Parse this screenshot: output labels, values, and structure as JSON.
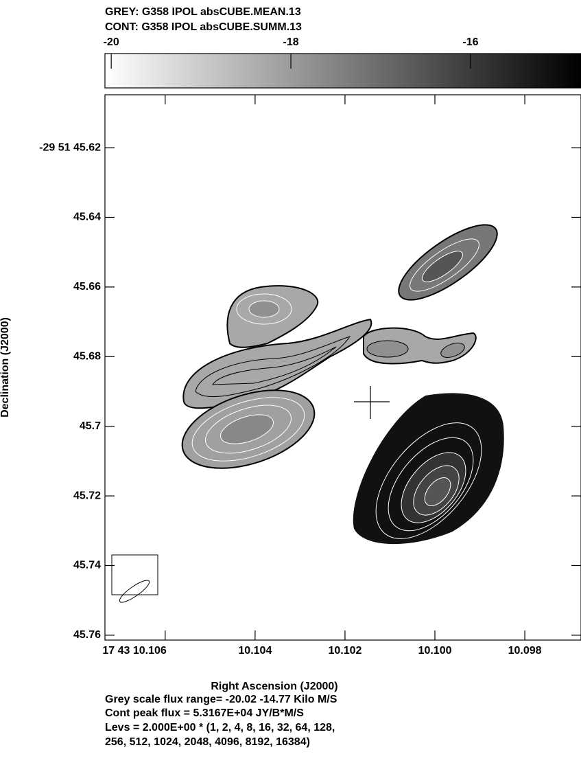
{
  "chart_data": {
    "type": "image",
    "title_lines": [
      "GREY: G358  IPOL  absCUBE.MEAN.13",
      "CONT: G358  IPOL  absCUBE.SUMM.13"
    ],
    "colorbar": {
      "xlim": [
        -20.07,
        -14.77
      ],
      "xticks": [
        -20,
        -18,
        -16
      ],
      "colors": [
        "#ffffff",
        "#000000"
      ]
    },
    "xlim": [
      10.10734,
      10.09675
    ],
    "xticks": [
      {
        "value": 10.106,
        "label": "17 43 10.106"
      },
      10.104,
      10.102,
      {
        "value": 10.1,
        "label": "10.100"
      },
      10.098
    ],
    "ylim": [
      45.6048,
      45.7614
    ],
    "yticks": [
      {
        "value": 45.62,
        "label": "-29 51 45.62"
      },
      45.64,
      45.66,
      45.68,
      45.7,
      45.72,
      45.74,
      45.76
    ],
    "xlabel": "Right Ascension (J2000)",
    "ylabel": "Declination (J2000)",
    "notes": [
      "Grey scale flux range= -20.02 -14.77 Kilo M/S",
      "Cont peak flux =  5.3167E+04 JY/B*M/S",
      "Levs = 2.000E+00 * (1, 2, 4, 8, 16, 32, 64, 128,",
      "256, 512, 1024, 2048, 4096, 8192, 16384)"
    ]
  }
}
